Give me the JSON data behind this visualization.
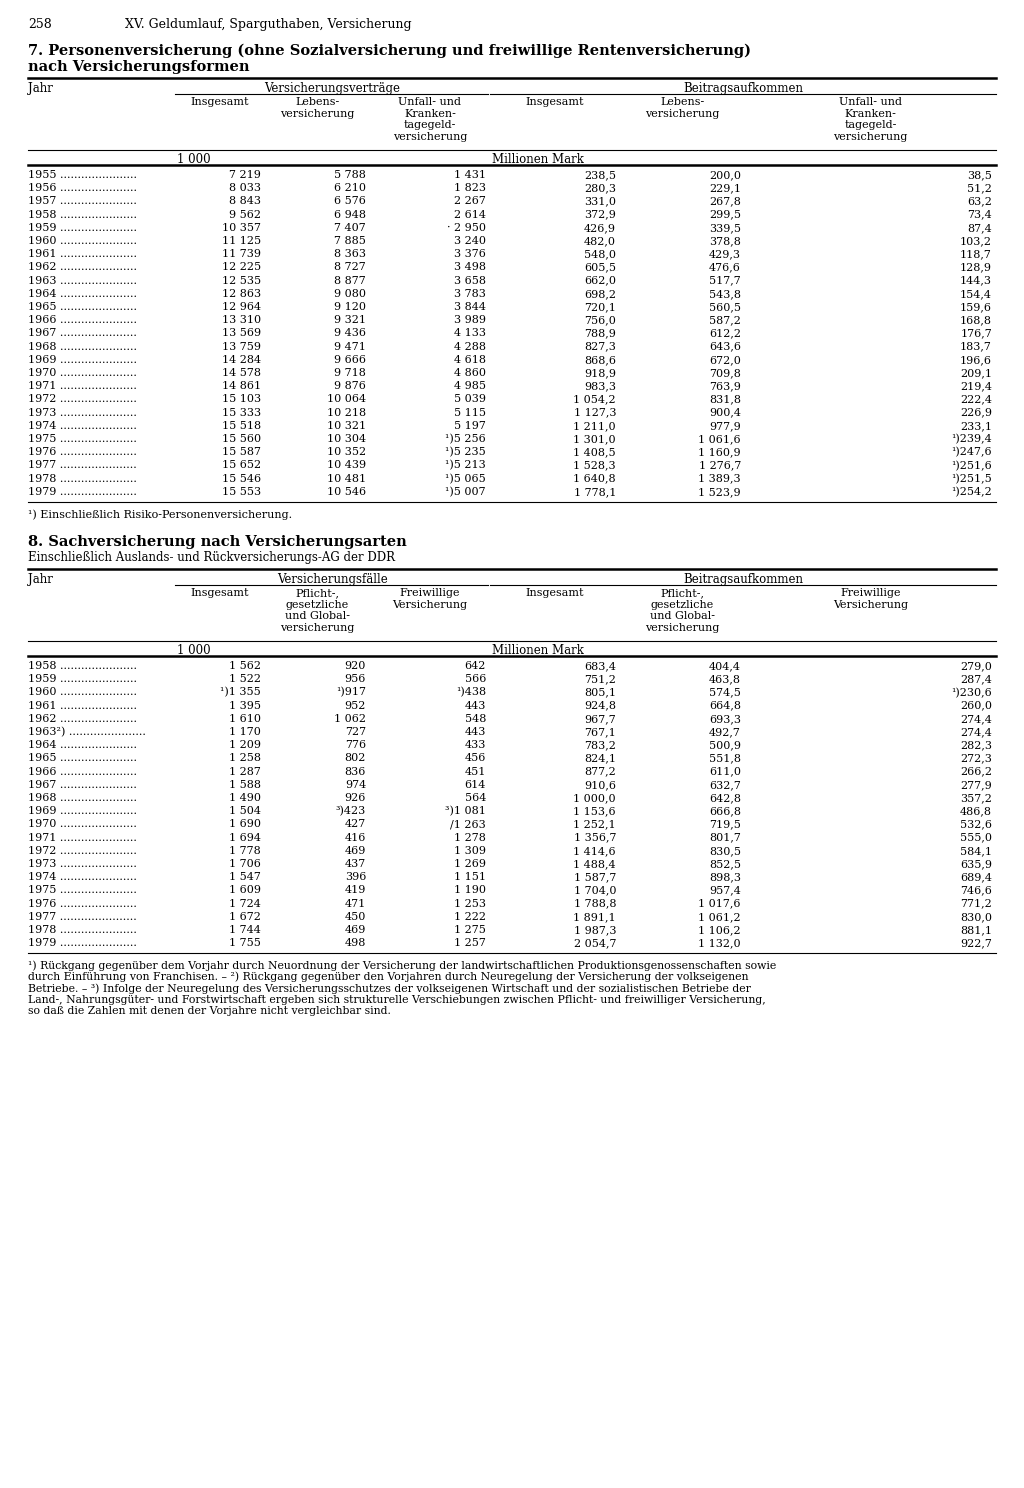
{
  "page_number": "258",
  "page_header": "XV. Geldumlauf, Sparguthaben, Versicherung",
  "table1_title_line1": "7. Personenversicherung (ohne Sozialversicherung und freiwillige Rentenversicherung)",
  "table1_title_line2": "nach Versicherungsformen",
  "table1_group1_header": "Versicherungsverträge",
  "table1_group2_header": "Beitragsaufkommen",
  "table1_col_jahr": "Jahr",
  "table1_col1": "Insgesamt",
  "table1_col2": "Lebens-\nversicherung",
  "table1_col3": "Unfall- und\nKranken-\ntagegeld-\nversicherung",
  "table1_col4": "Insgesamt",
  "table1_col5": "Lebens-\nversicherung",
  "table1_col6": "Unfall- und\nKranken-\ntagegeld-\nversicherung",
  "table1_unit1": "1 000",
  "table1_unit2": "Millionen Mark",
  "table1_data": [
    [
      "1955",
      "7 219",
      "5 788",
      "1 431",
      "238,5",
      "200,0",
      "38,5"
    ],
    [
      "1956",
      "8 033",
      "6 210",
      "1 823",
      "280,3",
      "229,1",
      "51,2"
    ],
    [
      "1957",
      "8 843",
      "6 576",
      "2 267",
      "331,0",
      "267,8",
      "63,2"
    ],
    [
      "1958",
      "9 562",
      "6 948",
      "2 614",
      "372,9",
      "299,5",
      "73,4"
    ],
    [
      "1959",
      "10 357",
      "7 407",
      "· 2 950",
      "426,9",
      "339,5",
      "87,4"
    ],
    [
      "1960",
      "11 125",
      "7 885",
      "3 240",
      "482,0",
      "378,8",
      "103,2"
    ],
    [
      "1961",
      "11 739",
      "8 363",
      "3 376",
      "548,0",
      "429,3",
      "118,7"
    ],
    [
      "1962",
      "12 225",
      "8 727",
      "3 498",
      "605,5",
      "476,6",
      "128,9"
    ],
    [
      "1963",
      "12 535",
      "8 877",
      "3 658",
      "662,0",
      "517,7",
      "144,3"
    ],
    [
      "1964",
      "12 863",
      "9 080",
      "3 783",
      "698,2",
      "543,8",
      "154,4"
    ],
    [
      "1965",
      "12 964",
      "9 120",
      "3 844",
      "720,1",
      "560,5",
      "159,6"
    ],
    [
      "1966",
      "13 310",
      "9 321",
      "3 989",
      "756,0",
      "587,2",
      "168,8"
    ],
    [
      "1967",
      "13 569",
      "9 436",
      "4 133",
      "788,9",
      "612,2",
      "176,7"
    ],
    [
      "1968",
      "13 759",
      "9 471",
      "4 288",
      "827,3",
      "643,6",
      "183,7"
    ],
    [
      "1969",
      "14 284",
      "9 666",
      "4 618",
      "868,6",
      "672,0",
      "196,6"
    ],
    [
      "1970",
      "14 578",
      "9 718",
      "4 860",
      "918,9",
      "709,8",
      "209,1"
    ],
    [
      "1971",
      "14 861",
      "9 876",
      "4 985",
      "983,3",
      "763,9",
      "219,4"
    ],
    [
      "1972",
      "15 103",
      "10 064",
      "5 039",
      "1 054,2",
      "831,8",
      "222,4"
    ],
    [
      "1973",
      "15 333",
      "10 218",
      "5 115",
      "1 127,3",
      "900,4",
      "226,9"
    ],
    [
      "1974",
      "15 518",
      "10 321",
      "5 197",
      "1 211,0",
      "977,9",
      "233,1"
    ],
    [
      "1975",
      "15 560",
      "10 304",
      "¹)5 256",
      "1 301,0",
      "1 061,6",
      "¹)239,4"
    ],
    [
      "1976",
      "15 587",
      "10 352",
      "¹)5 235",
      "1 408,5",
      "1 160,9",
      "¹)247,6"
    ],
    [
      "1977",
      "15 652",
      "10 439",
      "¹)5 213",
      "1 528,3",
      "1 276,7",
      "¹)251,6"
    ],
    [
      "1978",
      "15 546",
      "10 481",
      "¹)5 065",
      "1 640,8",
      "1 389,3",
      "¹)251,5"
    ],
    [
      "1979",
      "15 553",
      "10 546",
      "¹)5 007",
      "1 778,1",
      "1 523,9",
      "¹)254,2"
    ]
  ],
  "table1_footnote": "¹) Einschließlich Risiko-Personenversicherung.",
  "table2_title": "8. Sachversicherung nach Versicherungsarten",
  "table2_subtitle": "Einschließlich Auslands- und Rückversicherungs-AG der DDR",
  "table2_group1_header": "Versicherungsfälle",
  "table2_group2_header": "Beitragsaufkommen",
  "table2_col_jahr": "Jahr",
  "table2_col1": "Insgesamt",
  "table2_col2": "Pflicht-,\ngesetzliche\nund Global-\nversicherung",
  "table2_col3": "Freiwillige\nVersicherung",
  "table2_col4": "Insgesamt",
  "table2_col5": "Pflicht-,\ngesetzliche\nund Global-\nversicherung",
  "table2_col6": "Freiwillige\nVersicherung",
  "table2_unit1": "1 000",
  "table2_unit2": "Millionen Mark",
  "table2_data": [
    [
      "1958",
      "1 562",
      "920",
      "642",
      "683,4",
      "404,4",
      "279,0"
    ],
    [
      "1959",
      "1 522",
      "956",
      "566",
      "751,2",
      "463,8",
      "287,4"
    ],
    [
      "1960",
      "¹)1 355",
      "¹)917",
      "¹)438",
      "805,1",
      "574,5",
      "¹)230,6"
    ],
    [
      "1961",
      "1 395",
      "952",
      "443",
      "924,8",
      "664,8",
      "260,0"
    ],
    [
      "1962",
      "1 610",
      "1 062",
      "548",
      "967,7",
      "693,3",
      "274,4"
    ],
    [
      "1963²)",
      "1 170",
      "727",
      "443",
      "767,1",
      "492,7",
      "274,4"
    ],
    [
      "1964",
      "1 209",
      "776",
      "433",
      "783,2",
      "500,9",
      "282,3"
    ],
    [
      "1965",
      "1 258",
      "802",
      "456",
      "824,1",
      "551,8",
      "272,3"
    ],
    [
      "1966",
      "1 287",
      "836",
      "451",
      "877,2",
      "611,0",
      "266,2"
    ],
    [
      "1967",
      "1 588",
      "974",
      "614",
      "910,6",
      "632,7",
      "277,9"
    ],
    [
      "1968",
      "1 490",
      "926",
      "564",
      "1 000,0",
      "642,8",
      "357,2"
    ],
    [
      "1969",
      "1 504",
      "³)423",
      "³)1 081",
      "1 153,6",
      "666,8",
      "486,8"
    ],
    [
      "1970",
      "1 690",
      "427",
      "/1 263",
      "1 252,1",
      "719,5",
      "532,6"
    ],
    [
      "1971",
      "1 694",
      "416",
      "1 278",
      "1 356,7",
      "801,7",
      "555,0"
    ],
    [
      "1972",
      "1 778",
      "469",
      "1 309",
      "1 414,6",
      "830,5",
      "584,1"
    ],
    [
      "1973",
      "1 706",
      "437",
      "1 269",
      "1 488,4",
      "852,5",
      "635,9"
    ],
    [
      "1974",
      "1 547",
      "396",
      "1 151",
      "1 587,7",
      "898,3",
      "689,4"
    ],
    [
      "1975",
      "1 609",
      "419",
      "1 190",
      "1 704,0",
      "957,4",
      "746,6"
    ],
    [
      "1976",
      "1 724",
      "471",
      "1 253",
      "1 788,8",
      "1 017,6",
      "771,2"
    ],
    [
      "1977",
      "1 672",
      "450",
      "1 222",
      "1 891,1",
      "1 061,2",
      "830,0"
    ],
    [
      "1978",
      "1 744",
      "469",
      "1 275",
      "1 987,3",
      "1 106,2",
      "881,1"
    ],
    [
      "1979",
      "1 755",
      "498",
      "1 257",
      "2 054,7",
      "1 132,0",
      "922,7"
    ]
  ],
  "table2_footnote_lines": [
    "¹) Rückgang gegenüber dem Vorjahr durch Neuordnung der Versicherung der landwirtschaftlichen Produktionsgenossenschaften sowie",
    "durch Einführung von Franchisen. – ²) Rückgang gegenüber den Vorjahren durch Neuregelung der Versicherung der volkseigenen",
    "Betriebe. – ³) Infolge der Neuregelung des Versicherungsschutzes der volkseigenen Wirtschaft und der sozialistischen Betriebe der",
    "Land-, Nahrungsgüter- und Forstwirtschaft ergeben sich strukturelle Verschiebungen zwischen Pflicht- und freiwilliger Versicherung,",
    "so daß die Zahlen mit denen der Vorjahre nicht vergleichbar sind."
  ]
}
